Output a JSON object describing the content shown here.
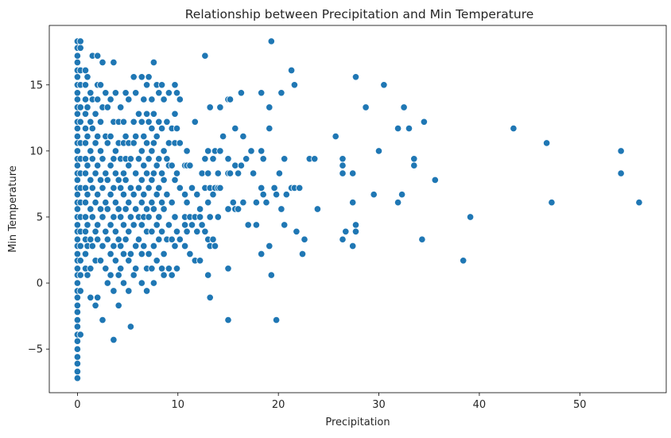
{
  "chart_data": {
    "type": "scatter",
    "title": "Relationship between Precipitation and Min Temperature",
    "xlabel": "Precipitation",
    "ylabel": "Min Temperature",
    "xlim": [
      -2.8,
      58.6
    ],
    "ylim": [
      -8.3,
      19.5
    ],
    "xticks": [
      0,
      10,
      20,
      30,
      40,
      50
    ],
    "yticks": [
      -5,
      0,
      5,
      10,
      15
    ],
    "ytick_labels": [
      "−5",
      "0",
      "5",
      "10",
      "15"
    ],
    "marker_color": "#1f77b4",
    "grid": false,
    "points": [
      [
        0,
        18.3
      ],
      [
        0,
        17.8
      ],
      [
        0,
        17.2
      ],
      [
        0,
        16.7
      ],
      [
        0,
        16.1
      ],
      [
        0,
        15.6
      ],
      [
        0,
        15
      ],
      [
        0,
        14.4
      ],
      [
        0,
        13.9
      ],
      [
        0,
        13.3
      ],
      [
        0,
        12.8
      ],
      [
        0,
        12.2
      ],
      [
        0,
        11.7
      ],
      [
        0,
        11.1
      ],
      [
        0,
        10.6
      ],
      [
        0,
        10
      ],
      [
        0,
        9.4
      ],
      [
        0,
        8.9
      ],
      [
        0,
        8.3
      ],
      [
        0,
        7.8
      ],
      [
        0,
        7.2
      ],
      [
        0,
        6.7
      ],
      [
        0,
        6.1
      ],
      [
        0,
        5.6
      ],
      [
        0,
        5
      ],
      [
        0,
        4.4
      ],
      [
        0,
        3.9
      ],
      [
        0,
        3.3
      ],
      [
        0,
        2.8
      ],
      [
        0,
        2.2
      ],
      [
        0,
        1.7
      ],
      [
        0,
        1.1
      ],
      [
        0,
        0.6
      ],
      [
        0,
        0
      ],
      [
        0,
        -0.6
      ],
      [
        0,
        -1.1
      ],
      [
        0,
        -1.7
      ],
      [
        0,
        -2.2
      ],
      [
        0,
        -2.8
      ],
      [
        0,
        -3.3
      ],
      [
        0,
        -3.9
      ],
      [
        0,
        -4.4
      ],
      [
        0,
        -5
      ],
      [
        0,
        -5.6
      ],
      [
        0,
        -6.1
      ],
      [
        0,
        -6.7
      ],
      [
        0,
        -7.2
      ],
      [
        0.3,
        18.3
      ],
      [
        0.3,
        17.8
      ],
      [
        0.3,
        16.1
      ],
      [
        0.3,
        15
      ],
      [
        0.3,
        13.3
      ],
      [
        0.3,
        12.2
      ],
      [
        0.3,
        10.6
      ],
      [
        0.3,
        9.4
      ],
      [
        0.3,
        8.3
      ],
      [
        0.3,
        7.2
      ],
      [
        0.3,
        6.1
      ],
      [
        0.3,
        5
      ],
      [
        0.3,
        3.9
      ],
      [
        0.3,
        2.8
      ],
      [
        0.3,
        1.7
      ],
      [
        0.3,
        0.6
      ],
      [
        0.3,
        -0.6
      ],
      [
        0.3,
        -3.9
      ],
      [
        0.8,
        16.1
      ],
      [
        0.8,
        15
      ],
      [
        0.8,
        13.9
      ],
      [
        0.8,
        12.8
      ],
      [
        0.8,
        11.7
      ],
      [
        0.8,
        10.6
      ],
      [
        0.8,
        9.4
      ],
      [
        0.8,
        8.3
      ],
      [
        0.8,
        7.2
      ],
      [
        0.8,
        6.1
      ],
      [
        0.8,
        5
      ],
      [
        0.8,
        3.9
      ],
      [
        0.8,
        3.3
      ],
      [
        0.8,
        2.2
      ],
      [
        0.8,
        1.1
      ],
      [
        1,
        15.6
      ],
      [
        1,
        13.3
      ],
      [
        1,
        11.1
      ],
      [
        1,
        8.9
      ],
      [
        1,
        6.7
      ],
      [
        1,
        4.4
      ],
      [
        1,
        2.8
      ],
      [
        1,
        0.6
      ],
      [
        1.3,
        14.4
      ],
      [
        1.3,
        12.2
      ],
      [
        1.3,
        10
      ],
      [
        1.3,
        7.8
      ],
      [
        1.3,
        5.6
      ],
      [
        1.3,
        3.3
      ],
      [
        1.3,
        1.1
      ],
      [
        1.3,
        -1.1
      ],
      [
        1.5,
        17.2
      ],
      [
        1.5,
        13.9
      ],
      [
        1.5,
        11.7
      ],
      [
        1.5,
        9.4
      ],
      [
        1.5,
        7.2
      ],
      [
        1.5,
        5
      ],
      [
        1.5,
        2.8
      ],
      [
        1.8,
        12.8
      ],
      [
        1.8,
        10.6
      ],
      [
        1.8,
        8.3
      ],
      [
        1.8,
        6.1
      ],
      [
        1.8,
        3.9
      ],
      [
        1.8,
        1.7
      ],
      [
        1.8,
        -1.7
      ],
      [
        2,
        17.2
      ],
      [
        2,
        15
      ],
      [
        2,
        13.9
      ],
      [
        2,
        11.1
      ],
      [
        2,
        8.9
      ],
      [
        2,
        6.7
      ],
      [
        2,
        4.4
      ],
      [
        2,
        3.3
      ],
      [
        2,
        -1.1
      ],
      [
        2.3,
        15
      ],
      [
        2.3,
        12.2
      ],
      [
        2.3,
        10
      ],
      [
        2.3,
        7.8
      ],
      [
        2.3,
        5.6
      ],
      [
        2.3,
        1.7
      ],
      [
        2.5,
        16.7
      ],
      [
        2.5,
        13.3
      ],
      [
        2.5,
        9.4
      ],
      [
        2.5,
        7.2
      ],
      [
        2.5,
        5
      ],
      [
        2.5,
        2.8
      ],
      [
        2.5,
        -2.8
      ],
      [
        2.8,
        14.4
      ],
      [
        2.8,
        11.1
      ],
      [
        2.8,
        8.3
      ],
      [
        2.8,
        6.1
      ],
      [
        2.8,
        3.9
      ],
      [
        2.8,
        1.1
      ],
      [
        3,
        13.3
      ],
      [
        3,
        10.6
      ],
      [
        3,
        7.8
      ],
      [
        3,
        5.6
      ],
      [
        3,
        3.3
      ],
      [
        3,
        0
      ],
      [
        3.3,
        13.9
      ],
      [
        3.3,
        11.1
      ],
      [
        3.3,
        8.9
      ],
      [
        3.3,
        6.7
      ],
      [
        3.3,
        4.4
      ],
      [
        3.3,
        2.2
      ],
      [
        3.3,
        0.6
      ],
      [
        3.6,
        16.7
      ],
      [
        3.6,
        12.2
      ],
      [
        3.6,
        9.4
      ],
      [
        3.6,
        7.2
      ],
      [
        3.6,
        5
      ],
      [
        3.6,
        2.8
      ],
      [
        3.6,
        -0.6
      ],
      [
        3.6,
        -4.3
      ],
      [
        3.8,
        14.4
      ],
      [
        3.8,
        10
      ],
      [
        3.8,
        8.3
      ],
      [
        3.8,
        6.1
      ],
      [
        3.8,
        3.9
      ],
      [
        3.8,
        1.7
      ],
      [
        4.1,
        12.2
      ],
      [
        4.1,
        10.6
      ],
      [
        4.1,
        7.8
      ],
      [
        4.1,
        5.6
      ],
      [
        4.1,
        3.3
      ],
      [
        4.1,
        0.6
      ],
      [
        4.1,
        -1.7
      ],
      [
        4.3,
        13.3
      ],
      [
        4.3,
        9.4
      ],
      [
        4.3,
        7.2
      ],
      [
        4.3,
        5
      ],
      [
        4.3,
        2.8
      ],
      [
        4.3,
        1.1
      ],
      [
        4.6,
        12.2
      ],
      [
        4.6,
        10.6
      ],
      [
        4.6,
        8.3
      ],
      [
        4.6,
        6.7
      ],
      [
        4.6,
        4.4
      ],
      [
        4.6,
        2.2
      ],
      [
        4.6,
        0
      ],
      [
        4.8,
        14.4
      ],
      [
        4.8,
        11.1
      ],
      [
        4.8,
        9.4
      ],
      [
        4.8,
        7.8
      ],
      [
        4.8,
        5.6
      ],
      [
        4.8,
        3.3
      ],
      [
        5.1,
        13.9
      ],
      [
        5.1,
        10.6
      ],
      [
        5.1,
        8.9
      ],
      [
        5.1,
        6.1
      ],
      [
        5.1,
        3.9
      ],
      [
        5.1,
        1.7
      ],
      [
        5.1,
        -0.6
      ],
      [
        5.3,
        9.4
      ],
      [
        5.3,
        7.2
      ],
      [
        5.3,
        5
      ],
      [
        5.3,
        2.2
      ],
      [
        5.3,
        -3.3
      ],
      [
        5.6,
        15.6
      ],
      [
        5.6,
        12.2
      ],
      [
        5.6,
        10.6
      ],
      [
        5.6,
        6.7
      ],
      [
        5.6,
        4.4
      ],
      [
        5.6,
        0.6
      ],
      [
        5.8,
        14.4
      ],
      [
        5.8,
        11.1
      ],
      [
        5.8,
        8.3
      ],
      [
        5.8,
        5.6
      ],
      [
        5.8,
        2.8
      ],
      [
        5.8,
        1.1
      ],
      [
        6.1,
        12.8
      ],
      [
        6.1,
        9.4
      ],
      [
        6.1,
        7.2
      ],
      [
        6.1,
        5
      ],
      [
        6.1,
        3.3
      ],
      [
        6.4,
        15.6
      ],
      [
        6.4,
        12.2
      ],
      [
        6.4,
        10
      ],
      [
        6.4,
        7.8
      ],
      [
        6.4,
        6.1
      ],
      [
        6.4,
        4.4
      ],
      [
        6.4,
        2.2
      ],
      [
        6.4,
        0
      ],
      [
        6.6,
        13.9
      ],
      [
        6.6,
        11.1
      ],
      [
        6.6,
        8.9
      ],
      [
        6.6,
        6.7
      ],
      [
        6.6,
        5
      ],
      [
        6.6,
        2.8
      ],
      [
        6.9,
        15
      ],
      [
        6.9,
        12.8
      ],
      [
        6.9,
        10.6
      ],
      [
        6.9,
        8.3
      ],
      [
        6.9,
        5.6
      ],
      [
        6.9,
        3.9
      ],
      [
        6.9,
        1.1
      ],
      [
        6.9,
        -0.6
      ],
      [
        7.1,
        15.6
      ],
      [
        7.1,
        12.2
      ],
      [
        7.1,
        9.4
      ],
      [
        7.1,
        7.2
      ],
      [
        7.1,
        5
      ],
      [
        7.1,
        2.2
      ],
      [
        7.4,
        13.9
      ],
      [
        7.4,
        11.7
      ],
      [
        7.4,
        10
      ],
      [
        7.4,
        7.8
      ],
      [
        7.4,
        6.1
      ],
      [
        7.4,
        3.9
      ],
      [
        7.4,
        1.1
      ],
      [
        7.6,
        16.7
      ],
      [
        7.6,
        12.8
      ],
      [
        7.6,
        10.6
      ],
      [
        7.6,
        8.3
      ],
      [
        7.6,
        5.6
      ],
      [
        7.6,
        2.8
      ],
      [
        7.6,
        0
      ],
      [
        7.9,
        15
      ],
      [
        7.9,
        11.1
      ],
      [
        7.9,
        8.9
      ],
      [
        7.9,
        6.7
      ],
      [
        7.9,
        4.4
      ],
      [
        7.9,
        1.7
      ],
      [
        8.1,
        14.4
      ],
      [
        8.1,
        12.2
      ],
      [
        8.1,
        9.4
      ],
      [
        8.1,
        7.2
      ],
      [
        8.1,
        5
      ],
      [
        8.1,
        3.3
      ],
      [
        8.4,
        15
      ],
      [
        8.4,
        11.7
      ],
      [
        8.4,
        8.3
      ],
      [
        8.4,
        6.1
      ],
      [
        8.4,
        3.9
      ],
      [
        8.4,
        1.1
      ],
      [
        8.6,
        13.9
      ],
      [
        8.6,
        10
      ],
      [
        8.6,
        7.8
      ],
      [
        8.6,
        5.6
      ],
      [
        8.6,
        2.2
      ],
      [
        8.6,
        0.6
      ],
      [
        8.9,
        12.2
      ],
      [
        8.9,
        9.4
      ],
      [
        8.9,
        6.7
      ],
      [
        8.9,
        3.3
      ],
      [
        9.1,
        14.4
      ],
      [
        9.1,
        10.6
      ],
      [
        9.1,
        8.9
      ],
      [
        9.1,
        4.4
      ],
      [
        9.1,
        1.1
      ],
      [
        9.4,
        11.7
      ],
      [
        9.4,
        8.9
      ],
      [
        9.4,
        6.1
      ],
      [
        9.4,
        3.3
      ],
      [
        9.4,
        0.6
      ],
      [
        9.7,
        15
      ],
      [
        9.7,
        12.8
      ],
      [
        9.7,
        10.6
      ],
      [
        9.7,
        7.8
      ],
      [
        9.7,
        5
      ],
      [
        9.7,
        2.8
      ],
      [
        9.9,
        14.4
      ],
      [
        9.9,
        11.7
      ],
      [
        9.9,
        8.3
      ],
      [
        9.9,
        3.9
      ],
      [
        9.9,
        1.1
      ],
      [
        10.2,
        13.9
      ],
      [
        10.2,
        10.6
      ],
      [
        10.2,
        7.2
      ],
      [
        10.2,
        3.3
      ],
      [
        10.7,
        8.9
      ],
      [
        10.7,
        6.7
      ],
      [
        10.7,
        5
      ],
      [
        10.7,
        4.4
      ],
      [
        10.7,
        2.8
      ],
      [
        10.9,
        10
      ],
      [
        10.9,
        8.9
      ],
      [
        10.9,
        6.1
      ],
      [
        10.9,
        3.9
      ],
      [
        11.2,
        8.9
      ],
      [
        11.2,
        5
      ],
      [
        11.2,
        2.2
      ],
      [
        11.4,
        7.2
      ],
      [
        11.4,
        4.4
      ],
      [
        11.7,
        12.2
      ],
      [
        11.7,
        5
      ],
      [
        11.7,
        1.7
      ],
      [
        11.9,
        6.7
      ],
      [
        11.9,
        3.9
      ],
      [
        12.2,
        5.6
      ],
      [
        12.2,
        5
      ],
      [
        12.2,
        1.7
      ],
      [
        12.4,
        8.3
      ],
      [
        12.4,
        4.4
      ],
      [
        12.7,
        17.2
      ],
      [
        12.7,
        9.4
      ],
      [
        12.7,
        7.2
      ],
      [
        12.7,
        3.9
      ],
      [
        13,
        10
      ],
      [
        13,
        8.3
      ],
      [
        13,
        6.1
      ],
      [
        13,
        3.3
      ],
      [
        13,
        0.6
      ],
      [
        13.2,
        13.3
      ],
      [
        13.2,
        7.2
      ],
      [
        13.2,
        5
      ],
      [
        13.2,
        2.8
      ],
      [
        13.2,
        -1.1
      ],
      [
        13.5,
        9.4
      ],
      [
        13.5,
        6.7
      ],
      [
        13.5,
        3.3
      ],
      [
        13.7,
        10
      ],
      [
        13.7,
        7.2
      ],
      [
        13.7,
        2.8
      ],
      [
        14,
        8.3
      ],
      [
        14,
        7.2
      ],
      [
        14,
        5
      ],
      [
        14.2,
        13.3
      ],
      [
        14.2,
        10
      ],
      [
        14.2,
        7.2
      ],
      [
        14.5,
        11.1
      ],
      [
        15,
        13.9
      ],
      [
        15,
        9.4
      ],
      [
        15,
        8.3
      ],
      [
        15,
        5.6
      ],
      [
        15,
        1.1
      ],
      [
        15,
        -2.8
      ],
      [
        15.2,
        13.9
      ],
      [
        15.2,
        8.3
      ],
      [
        15.5,
        6.1
      ],
      [
        15.7,
        11.7
      ],
      [
        15.7,
        8.9
      ],
      [
        15.7,
        5.6
      ],
      [
        16,
        8.3
      ],
      [
        16,
        5.6
      ],
      [
        16.3,
        14.4
      ],
      [
        16.3,
        8.9
      ],
      [
        16.5,
        11.1
      ],
      [
        16.5,
        6.1
      ],
      [
        16.8,
        9.4
      ],
      [
        17,
        4.4
      ],
      [
        17.3,
        10
      ],
      [
        17.5,
        8.3
      ],
      [
        17.8,
        6.1
      ],
      [
        17.8,
        4.4
      ],
      [
        18.3,
        14.4
      ],
      [
        18.3,
        10
      ],
      [
        18.3,
        7.2
      ],
      [
        18.3,
        2.2
      ],
      [
        18.5,
        9.4
      ],
      [
        18.5,
        6.7
      ],
      [
        18.8,
        6.1
      ],
      [
        19.1,
        13.3
      ],
      [
        19.1,
        11.7
      ],
      [
        19.1,
        2.8
      ],
      [
        19.3,
        18.3
      ],
      [
        19.3,
        0.6
      ],
      [
        19.6,
        7.2
      ],
      [
        19.8,
        6.7
      ],
      [
        19.8,
        -2.8
      ],
      [
        20.1,
        8.3
      ],
      [
        20.3,
        14.4
      ],
      [
        20.3,
        5.6
      ],
      [
        20.6,
        9.4
      ],
      [
        20.6,
        4.4
      ],
      [
        20.8,
        6.7
      ],
      [
        21.3,
        16.1
      ],
      [
        21.3,
        7.2
      ],
      [
        21.6,
        15
      ],
      [
        21.6,
        7.2
      ],
      [
        21.8,
        3.9
      ],
      [
        22.1,
        7.2
      ],
      [
        22.4,
        2.2
      ],
      [
        22.6,
        3.3
      ],
      [
        23.1,
        9.4
      ],
      [
        23.6,
        9.4
      ],
      [
        23.9,
        5.6
      ],
      [
        25.7,
        11.1
      ],
      [
        26.4,
        9.4
      ],
      [
        26.4,
        8.9
      ],
      [
        26.4,
        8.3
      ],
      [
        26.4,
        3.3
      ],
      [
        26.7,
        3.9
      ],
      [
        27.4,
        8.3
      ],
      [
        27.4,
        6.1
      ],
      [
        27.4,
        2.8
      ],
      [
        27.7,
        15.6
      ],
      [
        27.7,
        4.4
      ],
      [
        27.7,
        3.9
      ],
      [
        28.7,
        13.3
      ],
      [
        29.5,
        6.7
      ],
      [
        30,
        10
      ],
      [
        30.5,
        15
      ],
      [
        31.9,
        11.7
      ],
      [
        31.9,
        6.1
      ],
      [
        32.3,
        6.7
      ],
      [
        32.5,
        13.3
      ],
      [
        33,
        11.7
      ],
      [
        33.5,
        8.9
      ],
      [
        33.5,
        9.4
      ],
      [
        34.3,
        3.3
      ],
      [
        34.5,
        12.2
      ],
      [
        35.6,
        7.8
      ],
      [
        38.4,
        1.7
      ],
      [
        39.1,
        5
      ],
      [
        43.4,
        11.7
      ],
      [
        46.7,
        10.6
      ],
      [
        47.2,
        6.1
      ],
      [
        54.1,
        10
      ],
      [
        54.1,
        8.3
      ],
      [
        55.9,
        6.1
      ]
    ]
  }
}
